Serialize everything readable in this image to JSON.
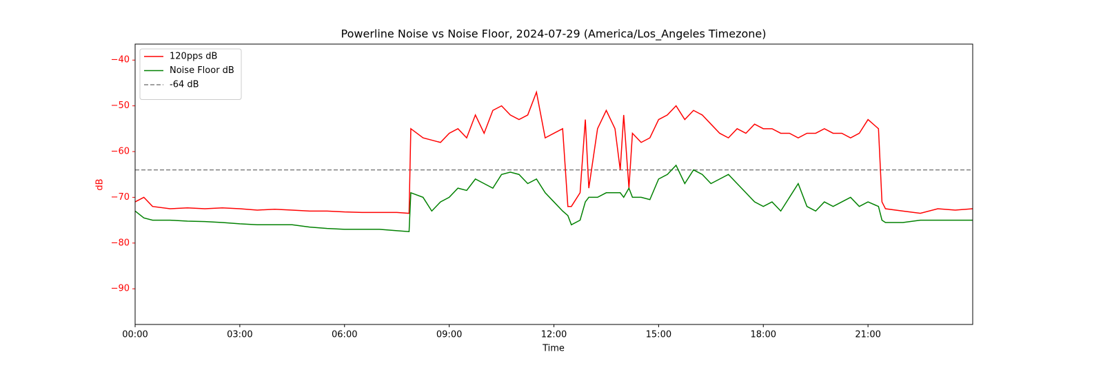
{
  "chart_data": {
    "type": "line",
    "title": "Powerline Noise vs Noise Floor, 2024-07-29 (America/Los_Angeles Timezone)",
    "xlabel": "Time",
    "ylabel": "dB",
    "label_color": "#ff0000",
    "xlim": [
      0,
      24
    ],
    "ylim": [
      -97.8,
      -36.5
    ],
    "xticks": [
      {
        "value": 0,
        "label": "00:00"
      },
      {
        "value": 3,
        "label": "03:00"
      },
      {
        "value": 6,
        "label": "06:00"
      },
      {
        "value": 9,
        "label": "09:00"
      },
      {
        "value": 12,
        "label": "12:00"
      },
      {
        "value": 15,
        "label": "15:00"
      },
      {
        "value": 18,
        "label": "18:00"
      },
      {
        "value": 21,
        "label": "21:00"
      }
    ],
    "yticks": [
      {
        "value": -90,
        "label": "−90"
      },
      {
        "value": -80,
        "label": "−80"
      },
      {
        "value": -70,
        "label": "−70"
      },
      {
        "value": -60,
        "label": "−60"
      },
      {
        "value": -50,
        "label": "−50"
      },
      {
        "value": -40,
        "label": "−40"
      }
    ],
    "legend": "upper left",
    "x": [
      0,
      0.25,
      0.5,
      1,
      1.5,
      2,
      2.5,
      3,
      3.5,
      4,
      4.5,
      5,
      5.5,
      6,
      6.5,
      7,
      7.5,
      7.85,
      7.9,
      8.25,
      8.5,
      8.75,
      9,
      9.25,
      9.5,
      9.75,
      10,
      10.25,
      10.5,
      10.75,
      11,
      11.25,
      11.5,
      11.75,
      12,
      12.25,
      12.4,
      12.5,
      12.75,
      12.9,
      13,
      13.25,
      13.5,
      13.75,
      13.9,
      14,
      14.15,
      14.25,
      14.5,
      14.75,
      15,
      15.25,
      15.5,
      15.75,
      16,
      16.25,
      16.5,
      16.75,
      17,
      17.25,
      17.5,
      17.75,
      18,
      18.25,
      18.5,
      18.75,
      19,
      19.25,
      19.5,
      19.75,
      20,
      20.25,
      20.5,
      20.75,
      21,
      21.3,
      21.4,
      21.5,
      22,
      22.5,
      23,
      23.5,
      24
    ],
    "series": [
      {
        "name": "120pps dB",
        "color": "#ff0000",
        "values": [
          -71,
          -70,
          -72,
          -72.5,
          -72.3,
          -72.5,
          -72.3,
          -72.5,
          -72.8,
          -72.6,
          -72.8,
          -73,
          -73,
          -73.2,
          -73.3,
          -73.3,
          -73.3,
          -73.5,
          -55,
          -57,
          -57.5,
          -58,
          -56,
          -55,
          -57,
          -52,
          -56,
          -51,
          -50,
          -52,
          -53,
          -52,
          -47,
          -57,
          -56,
          -55,
          -72,
          -72,
          -69,
          -53,
          -68,
          -55,
          -51,
          -55,
          -64,
          -52,
          -68,
          -56,
          -58,
          -57,
          -53,
          -52,
          -50,
          -53,
          -51,
          -52,
          -54,
          -56,
          -57,
          -55,
          -56,
          -54,
          -55,
          -55,
          -56,
          -56,
          -57,
          -56,
          -56,
          -55,
          -56,
          -56,
          -57,
          -56,
          -53,
          -55,
          -71,
          -72.5,
          -73,
          -73.5,
          -72.5,
          -72.8,
          -72.5
        ]
      },
      {
        "name": "Noise Floor dB",
        "color": "#008000",
        "values": [
          -73,
          -74.5,
          -75,
          -75,
          -75.2,
          -75.3,
          -75.5,
          -75.8,
          -76,
          -76,
          -76,
          -76.5,
          -76.8,
          -77,
          -77,
          -77,
          -77.3,
          -77.5,
          -69,
          -70,
          -73,
          -71,
          -70,
          -68,
          -68.5,
          -66,
          -67,
          -68,
          -65,
          -64.5,
          -65,
          -67,
          -66,
          -69,
          -71,
          -73,
          -74,
          -76,
          -75,
          -71,
          -70,
          -70,
          -69,
          -69,
          -69,
          -70,
          -68,
          -70,
          -70,
          -70.5,
          -66,
          -65,
          -63,
          -67,
          -64,
          -65,
          -67,
          -66,
          -65,
          -67,
          -69,
          -71,
          -72,
          -71,
          -73,
          -70,
          -67,
          -72,
          -73,
          -71,
          -72,
          -71,
          -70,
          -72,
          -71,
          -72,
          -75,
          -75.5,
          -75.5,
          -75,
          -75,
          -75,
          -75
        ]
      }
    ],
    "hlines": [
      {
        "name": "-64 dB",
        "value": -64,
        "color": "#808080",
        "dashed": true
      }
    ]
  }
}
